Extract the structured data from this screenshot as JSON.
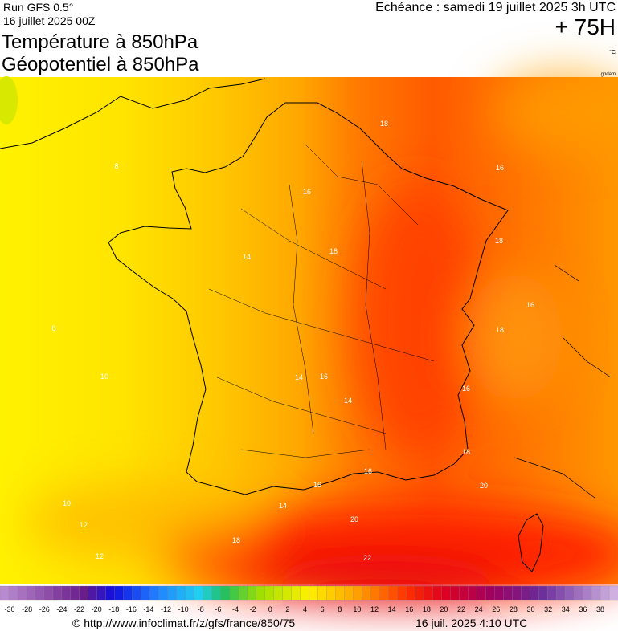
{
  "header": {
    "run": "Run GFS 0.5°",
    "run_date": "16 juillet 2025 00Z",
    "title_line1": "Température à 850hPa",
    "title_line2": "Géopotentiel à 850hPa",
    "valid_time": "Echéance : samedi 19 juillet 2025 3h UTC",
    "lead_time": "+ 75H",
    "unit": "°C",
    "credit": "gpdam"
  },
  "contour_labels": [
    18,
    16,
    18,
    16,
    18,
    16,
    18,
    20,
    22,
    18,
    16,
    14,
    12,
    10,
    8,
    10,
    12,
    14,
    14,
    16,
    16,
    14,
    16,
    18,
    20,
    8
  ],
  "colorbar": {
    "ticks": [
      -30,
      -28,
      -26,
      -24,
      -22,
      -20,
      -18,
      -16,
      -14,
      -12,
      -10,
      -8,
      -6,
      -4,
      -2,
      0,
      2,
      4,
      6,
      8,
      10,
      12,
      14,
      16,
      18,
      20,
      22,
      24,
      26,
      28,
      30,
      32,
      34,
      36,
      38
    ]
  },
  "footer": {
    "source": "© http://www.infoclimat.fr/z/gfs/france/850/75",
    "issued": "16 juil. 2025  4:10 UTC"
  }
}
